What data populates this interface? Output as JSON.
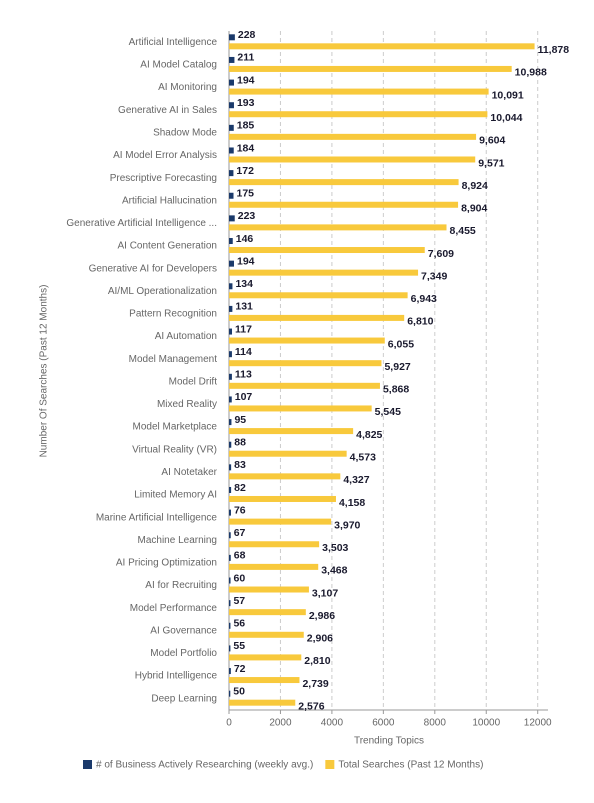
{
  "chart_data": {
    "type": "hbar",
    "x_label": "Trending Topics",
    "y_label": "Number Of Searches (Past 12 Months)",
    "categories": [
      "Artificial Intelligence",
      "AI Model Catalog",
      "AI Monitoring",
      "Generative AI in Sales",
      "Shadow Mode",
      "AI Model Error Analysis",
      "Prescriptive Forecasting",
      "Artificial Hallucination",
      "Generative Artificial Intelligence ...",
      "AI Content Generation",
      "Generative AI for Developers",
      "AI/ML Operationalization",
      "Pattern Recognition",
      "AI Automation",
      "Model Management",
      "Model Drift",
      "Mixed Reality",
      "Model Marketplace",
      "Virtual Reality (VR)",
      "AI Notetaker",
      "Limited Memory AI",
      "Marine Artificial Intelligence",
      "Machine Learning",
      "AI Pricing Optimization",
      "AI for Recruiting",
      "Model Performance",
      "AI Governance",
      "Model Portfolio",
      "Hybrid Intelligence",
      "Deep Learning"
    ],
    "series": [
      {
        "name": "# of Business Actively Researching (weekly avg.)",
        "color": "#1b3a6b",
        "values": [
          228,
          211,
          194,
          193,
          185,
          184,
          172,
          175,
          223,
          146,
          194,
          134,
          131,
          117,
          114,
          113,
          107,
          95,
          88,
          83,
          82,
          76,
          67,
          68,
          60,
          57,
          56,
          55,
          72,
          50
        ]
      },
      {
        "name": "Total Searches (Past 12 Months)",
        "color": "#f8c93c",
        "values": [
          11878,
          10988,
          10091,
          10044,
          9604,
          9571,
          8924,
          8904,
          8455,
          7609,
          7349,
          6943,
          6810,
          6055,
          5927,
          5868,
          5545,
          4825,
          4573,
          4327,
          4158,
          3970,
          3503,
          3468,
          3107,
          2986,
          2906,
          2810,
          2739,
          2576
        ],
        "value_labels": [
          "11,878",
          "10,988",
          "10,091",
          "10,044",
          "9,604",
          "9,571",
          "8,924",
          "8,904",
          "8,455",
          "7,609",
          "7,349",
          "6,943",
          "6,810",
          "6,055",
          "5,927",
          "5,868",
          "5,545",
          "4,825",
          "4,573",
          "4,327",
          "4,158",
          "3,970",
          "3,503",
          "3,468",
          "3,107",
          "2,986",
          "2,906",
          "2,810",
          "2,739",
          "2,576"
        ]
      }
    ],
    "xlim": [
      0,
      12400
    ],
    "xticks": [
      0,
      2000,
      4000,
      6000,
      8000,
      10000,
      12000
    ],
    "grid": true
  }
}
